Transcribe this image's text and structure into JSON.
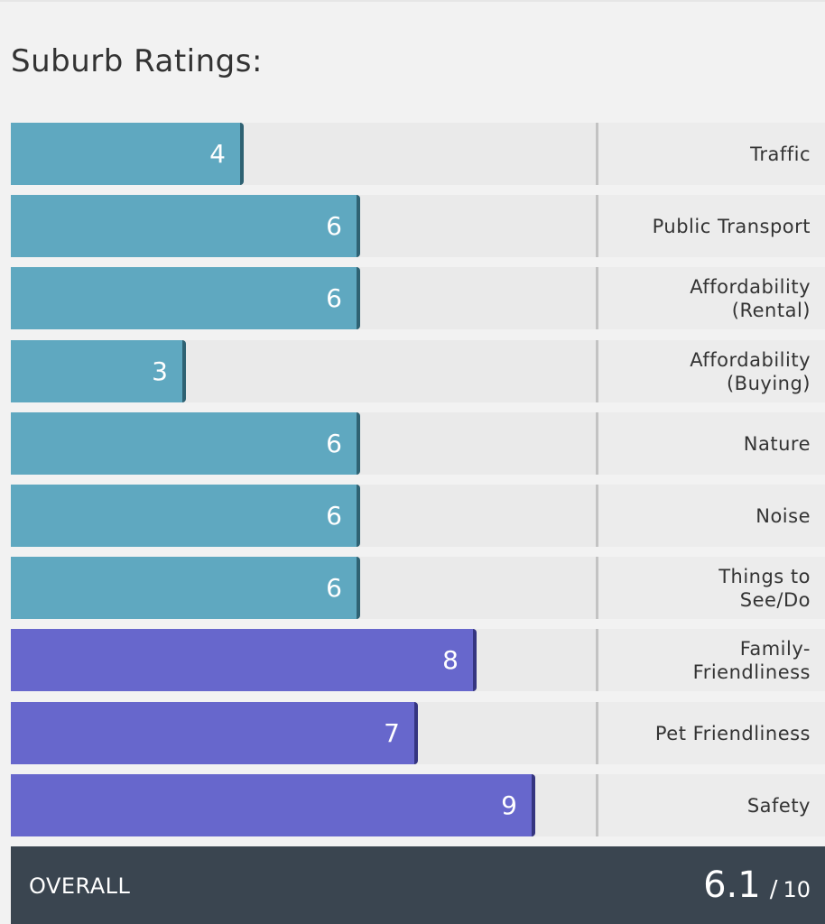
{
  "title": "Suburb Ratings:",
  "chart_data": {
    "type": "bar",
    "orientation": "horizontal",
    "xlim": [
      0,
      10
    ],
    "categories": [
      "Traffic",
      "Public Transport",
      "Affordability\n(Rental)",
      "Affordability\n(Buying)",
      "Nature",
      "Noise",
      "Things to\nSee/Do",
      "Family-\nFriendliness",
      "Pet Friendliness",
      "Safety"
    ],
    "values": [
      4,
      6,
      6,
      3,
      6,
      6,
      6,
      8,
      7,
      9
    ],
    "bar_colors": [
      "#5fa8c0",
      "#5fa8c0",
      "#5fa8c0",
      "#5fa8c0",
      "#5fa8c0",
      "#5fa8c0",
      "#5fa8c0",
      "#6767cc",
      "#6767cc",
      "#6767cc"
    ],
    "bar_edge_colors": [
      "#2f6273",
      "#2f6273",
      "#2f6273",
      "#2f6273",
      "#2f6273",
      "#2f6273",
      "#2f6273",
      "#353580",
      "#353580",
      "#353580"
    ],
    "data_labels": true,
    "grid": false
  },
  "overall": {
    "label": "OVERALL",
    "value": "6.1",
    "separator": "/",
    "max": "10"
  },
  "colors": {
    "background": "#f2f2f2",
    "track": "#eaeaea",
    "footer": "#3a4550"
  }
}
